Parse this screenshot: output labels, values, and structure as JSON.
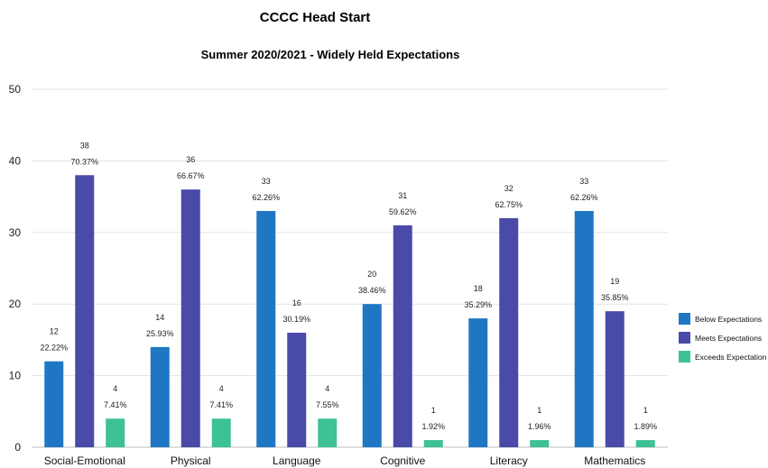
{
  "chart_data": {
    "type": "bar",
    "title": "CCCC Head Start",
    "subtitle": "Summer 2020/2021 - Widely Held Expectations",
    "categories": [
      "Social-Emotional",
      "Physical",
      "Language",
      "Cognitive",
      "Literacy",
      "Mathematics"
    ],
    "series": [
      {
        "name": "Below Expectations",
        "color": "#1f77c4",
        "values": [
          12,
          14,
          33,
          20,
          18,
          33
        ],
        "percents": [
          "22.22%",
          "25.93%",
          "62.26%",
          "38.46%",
          "35.29%",
          "62.26%"
        ]
      },
      {
        "name": "Meets Expectations",
        "color": "#4a4aa8",
        "values": [
          38,
          36,
          16,
          31,
          32,
          19
        ],
        "percents": [
          "70.37%",
          "66.67%",
          "30.19%",
          "59.62%",
          "62.75%",
          "35.85%"
        ]
      },
      {
        "name": "Exceeds Expectation",
        "color": "#3ec197",
        "values": [
          4,
          4,
          4,
          1,
          1,
          1
        ],
        "percents": [
          "7.41%",
          "7.41%",
          "7.55%",
          "1.92%",
          "1.96%",
          "1.89%"
        ]
      }
    ],
    "yticks": [
      "0",
      "10",
      "20",
      "30",
      "40",
      "50"
    ],
    "ylim": [
      0,
      50
    ],
    "grid": true,
    "legend_position": "right"
  }
}
